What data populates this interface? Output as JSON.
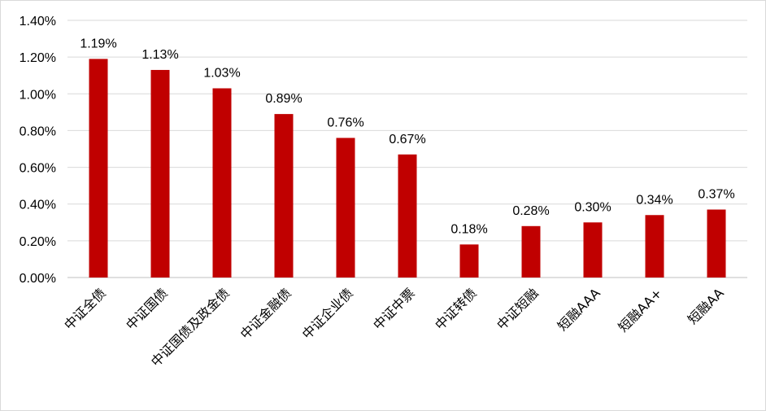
{
  "chart_data": {
    "type": "bar",
    "title": "",
    "xlabel": "",
    "ylabel": "",
    "categories": [
      "中证全债",
      "中证国债",
      "中证国债及政金债",
      "中证金融债",
      "中证企业债",
      "中证中票",
      "中证转债",
      "中证短融",
      "短融AAA",
      "短融AA+",
      "短融AA"
    ],
    "values": [
      1.19,
      1.13,
      1.03,
      0.89,
      0.76,
      0.67,
      0.18,
      0.28,
      0.3,
      0.34,
      0.37
    ],
    "data_labels": [
      "1.19%",
      "1.13%",
      "1.03%",
      "0.89%",
      "0.76%",
      "0.67%",
      "0.18%",
      "0.28%",
      "0.30%",
      "0.34%",
      "0.37%"
    ],
    "ylim": [
      0,
      1.4
    ],
    "y_ticks": [
      "0.00%",
      "0.20%",
      "0.40%",
      "0.60%",
      "0.80%",
      "1.00%",
      "1.20%",
      "1.40%"
    ],
    "grid": true,
    "legend": "none",
    "colors": {
      "bar": "#C00000",
      "grid": "#d9d9d9",
      "axis": "#bfbfbf"
    }
  }
}
